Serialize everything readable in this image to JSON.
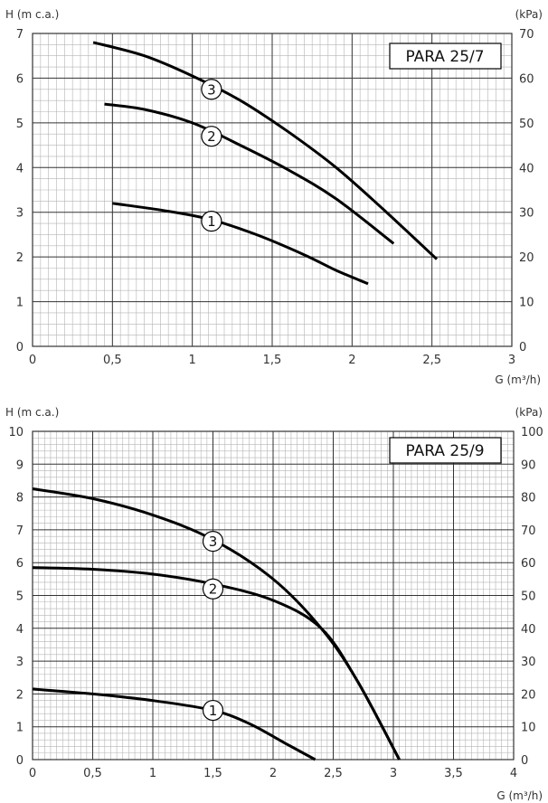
{
  "chart_data": [
    {
      "type": "line",
      "title": "PARA 25/7",
      "ylabel": "H (m c.a.)",
      "ylabel_right": "(kPa)",
      "xlabel": "G (m³/h)",
      "xlim": [
        0,
        3
      ],
      "ylim": [
        0,
        7
      ],
      "ylim_right": [
        0,
        70
      ],
      "grid": true,
      "x_ticks": [
        "0",
        "0,5",
        "1",
        "1,5",
        "2",
        "2,5",
        "3"
      ],
      "y_ticks": [
        "0",
        "1",
        "2",
        "3",
        "4",
        "5",
        "6",
        "7"
      ],
      "y_ticks_right": [
        "0",
        "10",
        "20",
        "30",
        "40",
        "50",
        "60",
        "70"
      ],
      "series": [
        {
          "name": "1",
          "x": [
            0.5,
            0.8,
            1.1,
            1.4,
            1.7,
            1.9,
            2.1
          ],
          "y": [
            3.2,
            3.05,
            2.85,
            2.5,
            2.05,
            1.7,
            1.4
          ],
          "label_at": [
            1.12,
            2.8
          ]
        },
        {
          "name": "2",
          "x": [
            0.45,
            0.7,
            1.0,
            1.3,
            1.6,
            1.9,
            2.26
          ],
          "y": [
            5.42,
            5.3,
            5.0,
            4.5,
            3.95,
            3.3,
            2.3
          ],
          "label_at": [
            1.12,
            4.7
          ]
        },
        {
          "name": "3",
          "x": [
            0.38,
            0.7,
            1.0,
            1.3,
            1.6,
            1.9,
            2.2,
            2.53
          ],
          "y": [
            6.8,
            6.5,
            6.05,
            5.5,
            4.8,
            4.0,
            3.05,
            1.95
          ],
          "label_at": [
            1.12,
            5.75
          ]
        }
      ]
    },
    {
      "type": "line",
      "title": "PARA 25/9",
      "ylabel": "H (m c.a.)",
      "ylabel_right": "(kPa)",
      "xlabel": "G (m³/h)",
      "xlim": [
        0,
        4
      ],
      "ylim": [
        0,
        10
      ],
      "ylim_right": [
        0,
        100
      ],
      "grid": true,
      "x_ticks": [
        "0",
        "0,5",
        "1",
        "1,5",
        "2",
        "2,5",
        "3",
        "3,5",
        "4"
      ],
      "y_ticks": [
        "0",
        "1",
        "2",
        "3",
        "4",
        "5",
        "6",
        "7",
        "8",
        "9",
        "10"
      ],
      "y_ticks_right": [
        "0",
        "10",
        "20",
        "30",
        "40",
        "50",
        "60",
        "70",
        "80",
        "90",
        "100"
      ],
      "series": [
        {
          "name": "1",
          "x": [
            0,
            0.5,
            1.0,
            1.5,
            1.8,
            2.1,
            2.35
          ],
          "y": [
            2.15,
            2.0,
            1.8,
            1.5,
            1.1,
            0.5,
            0.0
          ],
          "label_at": [
            1.5,
            1.5
          ]
        },
        {
          "name": "2",
          "x": [
            0,
            0.5,
            1.0,
            1.5,
            2.0,
            2.4,
            2.7,
            3.05
          ],
          "y": [
            5.85,
            5.8,
            5.65,
            5.35,
            4.85,
            4.0,
            2.4,
            0.0
          ],
          "label_at": [
            1.5,
            5.2
          ]
        },
        {
          "name": "3",
          "x": [
            0,
            0.5,
            1.0,
            1.5,
            2.0,
            2.4,
            2.7,
            3.05
          ],
          "y": [
            8.25,
            7.95,
            7.45,
            6.7,
            5.5,
            4.0,
            2.4,
            0.0
          ],
          "label_at": [
            1.5,
            6.65
          ]
        }
      ]
    }
  ]
}
